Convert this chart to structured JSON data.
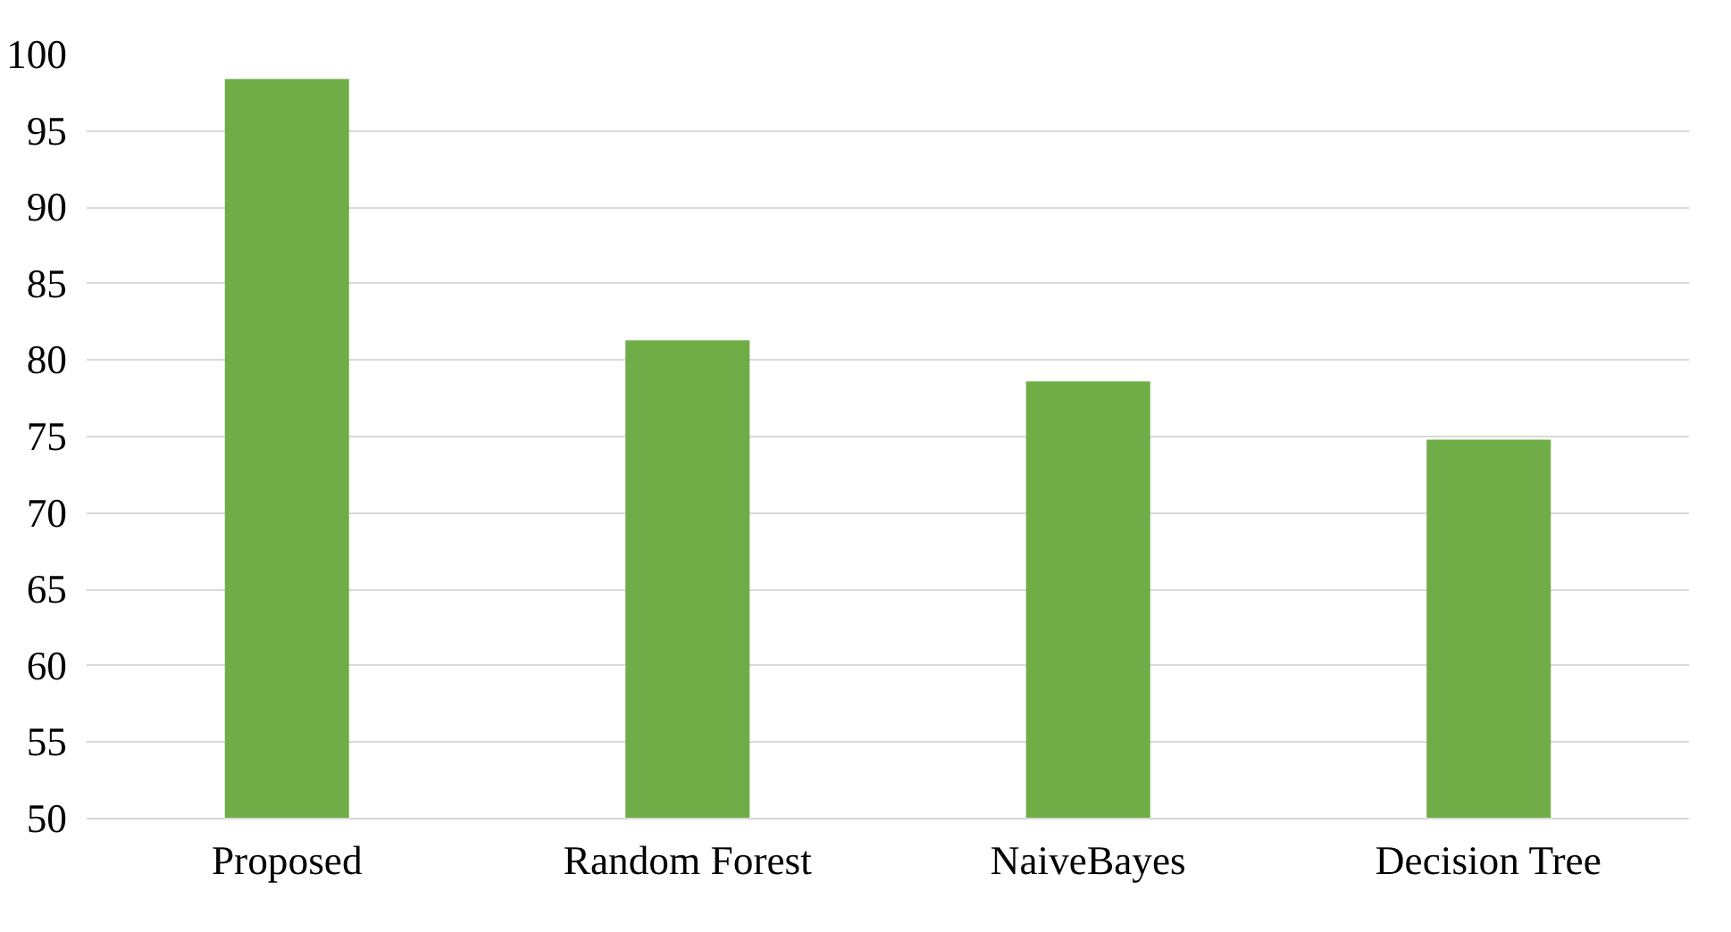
{
  "chart_data": {
    "type": "bar",
    "categories": [
      "Proposed",
      "Random Forest",
      "NaiveBayes",
      "Decision Tree"
    ],
    "values": [
      98.4,
      81.3,
      78.6,
      74.8
    ],
    "color": "#70ad47",
    "ylim": [
      50,
      100
    ],
    "yticks": [
      50,
      55,
      60,
      65,
      70,
      75,
      80,
      85,
      90,
      95,
      100
    ],
    "grid": "y"
  }
}
